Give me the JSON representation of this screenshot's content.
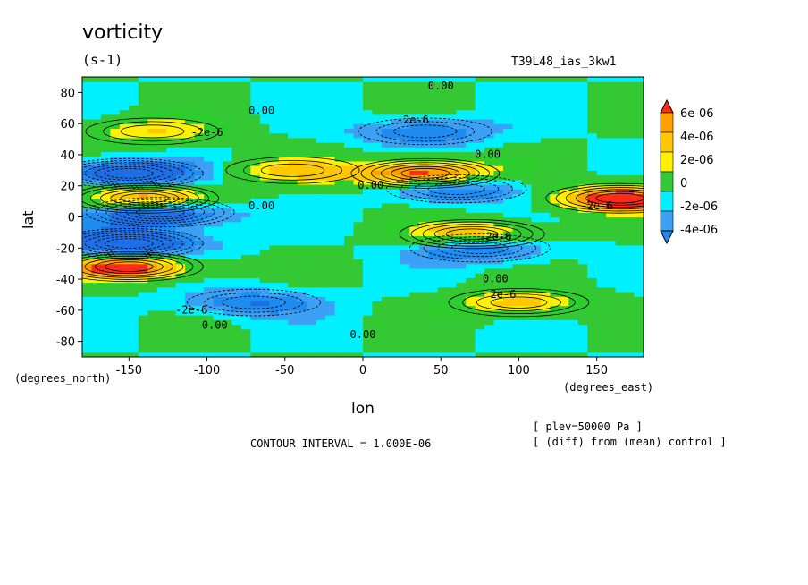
{
  "title": "vorticity",
  "units": "(s-1)",
  "run_name": "T39L48_ias_3kw1",
  "axis_units": {
    "y": "(degrees_north)",
    "x": "(degrees_east)"
  },
  "contour_interval": "CONTOUR INTERVAL = 1.000E-06",
  "annotations": {
    "plev": "[ plev=50000 Pa ]",
    "diff": "[ (diff) from (mean) control ]"
  },
  "palette": {
    "-5": "#1e6ee6",
    "-4": "#1e6ee6",
    "-3": "#1e8cf0",
    "-2": "#3ca0f5",
    "-1": "#00f0ff",
    "0": "#34c934",
    "1": "#2ccd2c",
    "2": "#fff000",
    "3": "#ffc800",
    "4": "#ffa000",
    "5": "#ff2a1a"
  },
  "chart_data": {
    "type": "heatmap",
    "title": "vorticity",
    "units": "(s-1)",
    "xlabel": "lon",
    "ylabel": "lat",
    "xlim": [
      -180,
      180
    ],
    "ylim": [
      -90,
      90
    ],
    "xticks": [
      -150,
      -100,
      -50,
      0,
      50,
      100,
      150
    ],
    "yticks": [
      -80,
      -60,
      -40,
      -20,
      0,
      20,
      40,
      60,
      80
    ],
    "colorbar": {
      "labels": [
        "6e-06",
        "4e-06",
        "2e-06",
        "0",
        "-2e-06",
        "-4e-06"
      ],
      "colors": [
        "#ff2a1a",
        "#ffa000",
        "#ffc800",
        "#fff000",
        "#34c934",
        "#00f0ff",
        "#3ca0f5",
        "#1e8cf0"
      ]
    },
    "contour_labels": [
      {
        "text": "0.00",
        "lon": 50,
        "lat": 82
      },
      {
        "text": "0.00",
        "lon": -65,
        "lat": 66
      },
      {
        "text": "-2e-6",
        "lon": 32,
        "lat": 60
      },
      {
        "text": "-2e-6",
        "lon": -100,
        "lat": 52
      },
      {
        "text": "0.00",
        "lon": 80,
        "lat": 38
      },
      {
        "text": "0.00",
        "lon": 5,
        "lat": 18
      },
      {
        "text": "0.00",
        "lon": -65,
        "lat": 5
      },
      {
        "text": "-2e-6",
        "lon": 150,
        "lat": 5
      },
      {
        "text": "-2e-6",
        "lon": 85,
        "lat": -15
      },
      {
        "text": "0.00",
        "lon": 85,
        "lat": -42
      },
      {
        "text": "2e-6",
        "lon": 90,
        "lat": -52
      },
      {
        "text": "-2e-6",
        "lon": -110,
        "lat": -62
      },
      {
        "text": "0.00",
        "lon": -95,
        "lat": -72
      },
      {
        "text": "0.00",
        "lon": 0,
        "lat": -78
      }
    ],
    "values_units": "s-1 (x1e-06)",
    "features": [
      {
        "lon": 40,
        "lat": 28,
        "value": 6.5
      },
      {
        "lon": 165,
        "lat": 12,
        "value": 6.5
      },
      {
        "lon": -140,
        "lat": 12,
        "value": 6.0
      },
      {
        "lon": -150,
        "lat": -32,
        "value": 6.0
      },
      {
        "lon": -130,
        "lat": 3,
        "value": -6.0
      },
      {
        "lon": -150,
        "lat": 28,
        "value": -5.5
      },
      {
        "lon": -150,
        "lat": -17,
        "value": -6.0
      },
      {
        "lon": 60,
        "lat": 18,
        "value": -4.0
      },
      {
        "lon": 70,
        "lat": -11,
        "value": 4.5
      },
      {
        "lon": 75,
        "lat": -20,
        "value": -4.0
      },
      {
        "lon": -45,
        "lat": 30,
        "value": 3.0
      },
      {
        "lon": -135,
        "lat": 55,
        "value": 3.0
      },
      {
        "lon": 100,
        "lat": -55,
        "value": 3.5
      },
      {
        "lon": 40,
        "lat": 55,
        "value": -3.0
      },
      {
        "lon": -70,
        "lat": -55,
        "value": -3.0
      }
    ]
  }
}
